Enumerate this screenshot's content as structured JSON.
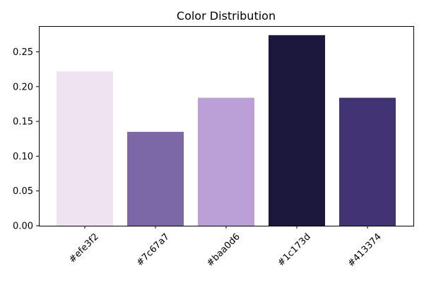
{
  "chart_data": {
    "type": "bar",
    "title": "Color Distribution",
    "xlabel": "",
    "ylabel": "",
    "categories": [
      "#efe3f2",
      "#7c67a7",
      "#baa0d6",
      "#1c173d",
      "#413374"
    ],
    "values": [
      0.222,
      0.135,
      0.184,
      0.274,
      0.184
    ],
    "bar_colors": [
      "#efe3f2",
      "#7c67a7",
      "#baa0d6",
      "#1c173d",
      "#413374"
    ],
    "ylim": [
      0,
      0.287
    ],
    "yticks": [
      0.0,
      0.05,
      0.1,
      0.15,
      0.2,
      0.25
    ],
    "ytick_labels": [
      "0.00",
      "0.05",
      "0.10",
      "0.15",
      "0.20",
      "0.25"
    ],
    "grid": false,
    "legend": "none"
  }
}
